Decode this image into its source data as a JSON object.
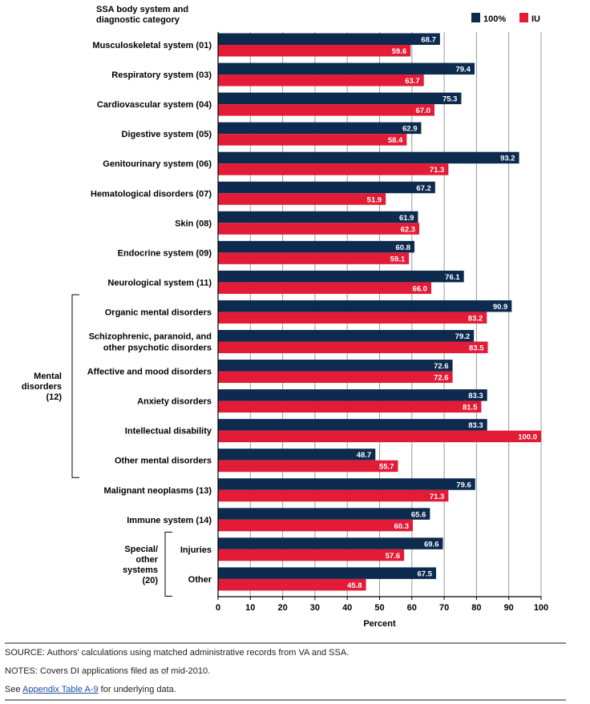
{
  "chart_data": {
    "type": "bar",
    "orientation": "horizontal",
    "title": "",
    "category_header": [
      "SSA body system and",
      "diagnostic category"
    ],
    "xlabel": "Percent",
    "ylabel": "",
    "xlim": [
      0,
      100
    ],
    "x_ticks": [
      0,
      10,
      20,
      30,
      40,
      50,
      60,
      70,
      80,
      90,
      100
    ],
    "grid": true,
    "legend_position": "top-right",
    "series": [
      {
        "name": "100%",
        "color": "#0d2a4f",
        "values": [
          68.7,
          79.4,
          75.3,
          62.9,
          93.2,
          67.2,
          61.9,
          60.8,
          76.1,
          90.9,
          79.2,
          72.6,
          83.3,
          83.3,
          48.7,
          79.6,
          65.6,
          69.6,
          67.5
        ]
      },
      {
        "name": "IU",
        "color": "#e21b36",
        "values": [
          59.6,
          63.7,
          67.0,
          58.4,
          71.3,
          51.9,
          62.3,
          59.1,
          66.0,
          83.2,
          83.5,
          72.6,
          81.5,
          100.0,
          55.7,
          71.3,
          60.3,
          57.6,
          45.8
        ]
      }
    ],
    "categories": [
      [
        "Musculoskeletal system (01)"
      ],
      [
        "Respiratory system (03)"
      ],
      [
        "Cardiovascular system (04)"
      ],
      [
        "Digestive system (05)"
      ],
      [
        "Genitourinary system (06)"
      ],
      [
        "Hematological disorders (07)"
      ],
      [
        "Skin (08)"
      ],
      [
        "Endocrine system (09)"
      ],
      [
        "Neurological system (11)"
      ],
      [
        "Organic mental disorders"
      ],
      [
        "Schizophrenic, paranoid, and",
        "other psychotic disorders"
      ],
      [
        "Affective and mood disorders"
      ],
      [
        "Anxiety disorders"
      ],
      [
        "Intellectual disability"
      ],
      [
        "Other mental disorders"
      ],
      [
        "Malignant neoplasms (13)"
      ],
      [
        "Immune system (14)"
      ],
      [
        "Injuries"
      ],
      [
        "Other"
      ]
    ],
    "groups": [
      {
        "label": [
          "Mental",
          "disorders",
          "(12)"
        ],
        "start": 9,
        "end": 14
      },
      {
        "label": [
          "Special/",
          "other",
          "systems",
          "(20)"
        ],
        "start": 17,
        "end": 18
      }
    ],
    "value_labels": [
      [
        "68.7",
        "59.6"
      ],
      [
        "79.4",
        "63.7"
      ],
      [
        "75.3",
        "67.0"
      ],
      [
        "62.9",
        "58.4"
      ],
      [
        "93.2",
        "71.3"
      ],
      [
        "67.2",
        "51.9"
      ],
      [
        "61.9",
        "62.3"
      ],
      [
        "60.8",
        "59.1"
      ],
      [
        "76.1",
        "66.0"
      ],
      [
        "90.9",
        "83.2"
      ],
      [
        "79.2",
        "83.5"
      ],
      [
        "72.6",
        "72.6"
      ],
      [
        "83.3",
        "81.5"
      ],
      [
        "83.3",
        "100.0"
      ],
      [
        "48.7",
        "55.7"
      ],
      [
        "79.6",
        "71.3"
      ],
      [
        "65.6",
        "60.3"
      ],
      [
        "69.6",
        "57.6"
      ],
      [
        "67.5",
        "45.8"
      ]
    ]
  },
  "footer": {
    "source": "SOURCE: Authors' calculations using matched administrative records from VA and SSA.",
    "notes": "NOTES: Covers DI applications filed as of mid-2010.",
    "see_prefix": "See ",
    "see_link": "Appendix Table A-9",
    "see_suffix": " for underlying data."
  }
}
